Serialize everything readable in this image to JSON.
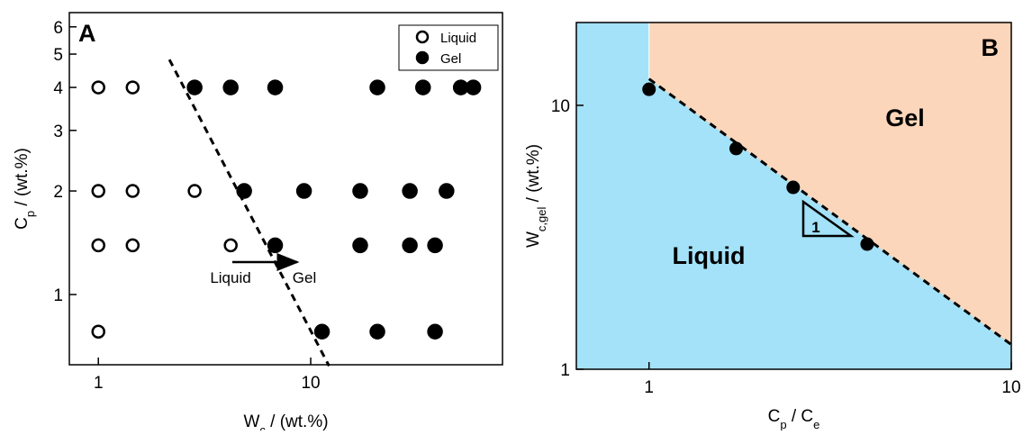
{
  "chart_data": [
    {
      "type": "scatter",
      "panel": "A",
      "log_x": true,
      "log_y": true,
      "xlabel": {
        "main": "W",
        "sub": "c",
        "rest": " / (wt.%)"
      },
      "ylabel": {
        "main": "C",
        "sub": "p",
        "rest": " / (wt.%)"
      },
      "xlim": [
        0.73,
        80
      ],
      "ylim": [
        0.625,
        6.6
      ],
      "xticks": [
        1,
        10
      ],
      "yticks": [
        1,
        2,
        3,
        4,
        5,
        6
      ],
      "legend": "upper right",
      "series": [
        {
          "name": "Liquid",
          "color": "#000000",
          "filled": false,
          "x": [
            1,
            1.45,
            1,
            1.45,
            2.84,
            1,
            1.45,
            4.2,
            1
          ],
          "values": [
            4,
            4,
            2,
            2,
            2,
            1.39,
            1.39,
            1.39,
            0.78
          ]
        },
        {
          "name": "Gel",
          "color": "#000000",
          "filled": true,
          "x": [
            2.84,
            4.2,
            6.8,
            20.6,
            33.8,
            50.9,
            58.3,
            4.86,
            9.3,
            17.1,
            29.3,
            43.6,
            6.8,
            17.1,
            29.3,
            38.5,
            11.3,
            20.6,
            38.5
          ],
          "values": [
            4,
            4,
            4,
            4,
            4,
            4,
            4,
            2,
            2,
            2,
            2,
            2,
            1.39,
            1.39,
            1.39,
            1.39,
            0.78,
            0.78,
            0.78
          ]
        }
      ],
      "boundary": {
        "x": [
          2.16,
          12.2
        ],
        "values": [
          4.82,
          0.62
        ]
      },
      "annotations": [
        "Liquid",
        "Gel"
      ]
    },
    {
      "type": "phase",
      "panel": "B",
      "log_x": true,
      "log_y": true,
      "xlabel": {
        "main": "C",
        "sub": "p",
        "rest": " / C",
        "sub2": "e"
      },
      "ylabel": {
        "main": "W",
        "sub": "c,gel",
        "rest": " / (wt.%)"
      },
      "xlim": [
        0.63,
        10
      ],
      "ylim": [
        1,
        20.6
      ],
      "xticks": [
        1,
        10
      ],
      "yticks": [
        1,
        10
      ],
      "x": [
        1,
        1.74,
        2.5,
        4.0
      ],
      "values": [
        11.5,
        6.86,
        4.89,
        2.98
      ],
      "color": "#000000",
      "boundary": {
        "x": [
          1,
          10
        ],
        "values": [
          12.6,
          1.24
        ]
      },
      "regions": [
        {
          "name": "Liquid",
          "color": "#a3e2f8"
        },
        {
          "name": "Gel",
          "color": "#fcd6ba"
        }
      ],
      "annotations": [
        "1"
      ]
    }
  ]
}
